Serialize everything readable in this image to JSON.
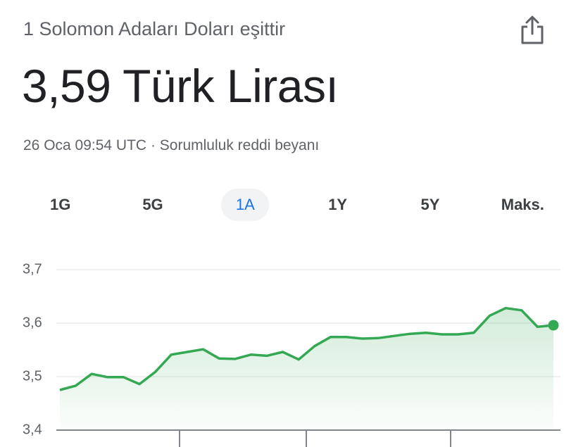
{
  "header": {
    "subtitle": "1 Solomon Adaları Doları eşittir",
    "title": "3,59 Türk Lirası",
    "timestamp": "26 Oca 09:54 UTC",
    "separator": "·",
    "disclaimer": "Sorumluluk reddi beyanı"
  },
  "tabs": {
    "items": [
      "1G",
      "5G",
      "1A",
      "1Y",
      "5Y",
      "Maks."
    ],
    "selected": 2
  },
  "chart_data": {
    "type": "line",
    "color": "#34a853",
    "values": [
      3.475,
      3.483,
      3.505,
      3.499,
      3.499,
      3.486,
      3.509,
      3.541,
      3.546,
      3.551,
      3.534,
      3.533,
      3.541,
      3.539,
      3.546,
      3.532,
      3.557,
      3.574,
      3.574,
      3.571,
      3.572,
      3.576,
      3.58,
      3.582,
      3.579,
      3.579,
      3.582,
      3.614,
      3.628,
      3.624,
      3.593,
      3.596
    ],
    "ylim": [
      3.4,
      3.7
    ],
    "yticks": [
      {
        "value": 3.4,
        "label": "3,4"
      },
      {
        "value": 3.5,
        "label": "3,5"
      },
      {
        "value": 3.6,
        "label": "3,6"
      },
      {
        "value": 3.7,
        "label": "3,7"
      }
    ],
    "grid": true
  }
}
